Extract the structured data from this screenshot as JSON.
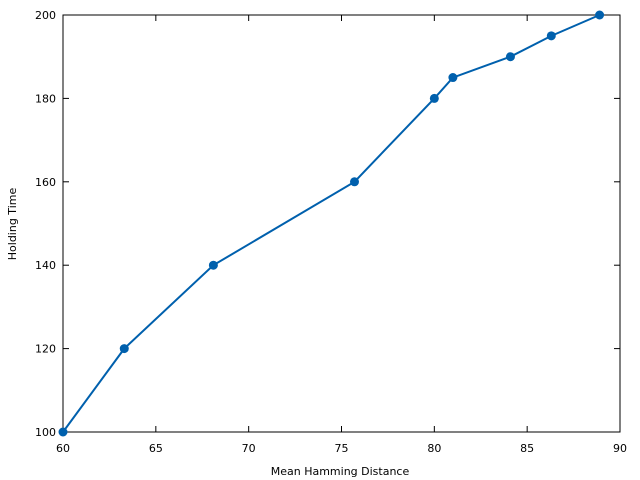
{
  "chart_data": {
    "type": "line",
    "x_label": "Mean Hamming Distance",
    "y_label": "Holding Time",
    "series": [
      {
        "color": "#0060ad",
        "x": [
          60,
          63.3,
          68.1,
          75.7,
          80.0,
          81.0,
          84.1,
          86.3,
          88.9
        ],
        "values": [
          100,
          120,
          140,
          160,
          180,
          185,
          190,
          195,
          200
        ]
      }
    ],
    "xlim": [
      60,
      90
    ],
    "xticks": [
      60,
      65,
      70,
      75,
      80,
      85,
      90
    ],
    "ylim": [
      100,
      200
    ],
    "yticks": [
      100,
      120,
      140,
      160,
      180,
      200
    ]
  }
}
